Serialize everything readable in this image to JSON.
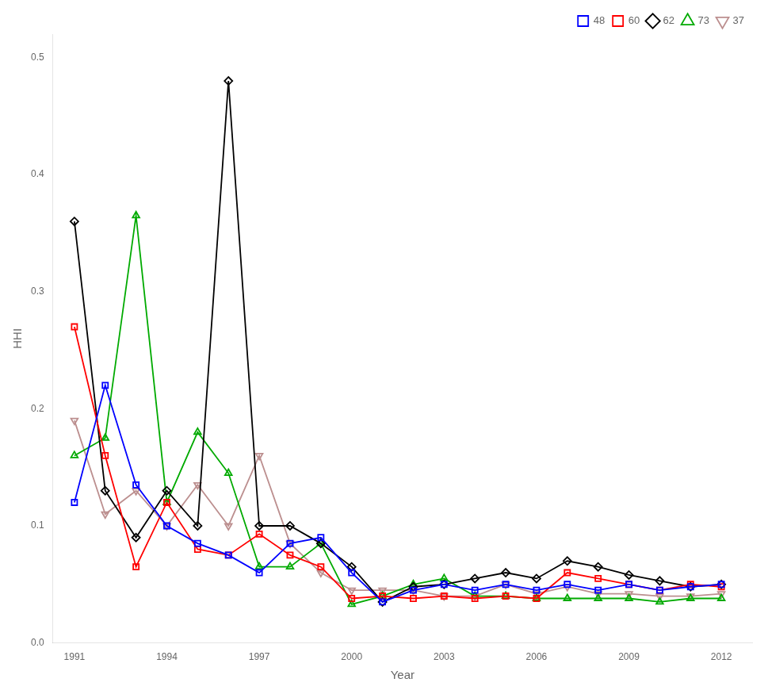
{
  "chart_data": {
    "type": "line",
    "x": [
      1991,
      1992,
      1993,
      1994,
      1995,
      1996,
      1997,
      1998,
      1999,
      2000,
      2001,
      2002,
      2003,
      2004,
      2005,
      2006,
      2007,
      2008,
      2009,
      2010,
      2011,
      2012
    ],
    "series": [
      {
        "name": "48",
        "color": "#0000FF",
        "marker": "square",
        "values": [
          0.12,
          0.22,
          0.135,
          0.1,
          0.085,
          0.075,
          0.06,
          0.085,
          0.09,
          0.06,
          0.035,
          0.045,
          0.05,
          0.045,
          0.05,
          0.045,
          0.05,
          0.045,
          0.05,
          0.045,
          0.048,
          0.05
        ]
      },
      {
        "name": "60",
        "color": "#FF0000",
        "marker": "square",
        "values": [
          0.27,
          0.16,
          0.065,
          0.12,
          0.08,
          0.075,
          0.093,
          0.075,
          0.065,
          0.038,
          0.04,
          0.038,
          0.04,
          0.038,
          0.04,
          0.038,
          0.06,
          0.055,
          0.05,
          0.045,
          0.05,
          0.048
        ]
      },
      {
        "name": "62",
        "color": "#000000",
        "marker": "diamond",
        "values": [
          0.36,
          0.13,
          0.09,
          0.13,
          0.1,
          0.48,
          0.1,
          0.1,
          0.085,
          0.065,
          0.035,
          0.048,
          0.05,
          0.055,
          0.06,
          0.055,
          0.07,
          0.065,
          0.058,
          0.053,
          0.048,
          0.05
        ]
      },
      {
        "name": "73",
        "color": "#00AA00",
        "marker": "triangle",
        "values": [
          0.16,
          0.175,
          0.365,
          0.12,
          0.18,
          0.145,
          0.065,
          0.065,
          0.085,
          0.033,
          0.04,
          0.05,
          0.055,
          0.04,
          0.04,
          0.038,
          0.038,
          0.038,
          0.038,
          0.035,
          0.038,
          0.038
        ]
      },
      {
        "name": "37",
        "color": "#BC8F8F",
        "marker": "triangle_down",
        "values": [
          0.19,
          0.11,
          0.13,
          0.1,
          0.135,
          0.1,
          0.16,
          0.085,
          0.06,
          0.045,
          0.045,
          0.045,
          0.04,
          0.04,
          0.05,
          0.042,
          0.048,
          0.042,
          0.042,
          0.04,
          0.04,
          0.042
        ]
      }
    ],
    "xlabel": "Year",
    "ylabel": "HHI",
    "xlim": [
      1990.3,
      2013.0
    ],
    "xticks": [
      1991,
      1994,
      1997,
      2000,
      2003,
      2006,
      2009,
      2012
    ],
    "ylim": [
      0,
      0.52
    ],
    "yticks": [
      {
        "value": 0,
        "label": "0.0"
      },
      0.1,
      0.2,
      0.3,
      0.4,
      0.5
    ],
    "grid": false,
    "legend": "upper right"
  }
}
